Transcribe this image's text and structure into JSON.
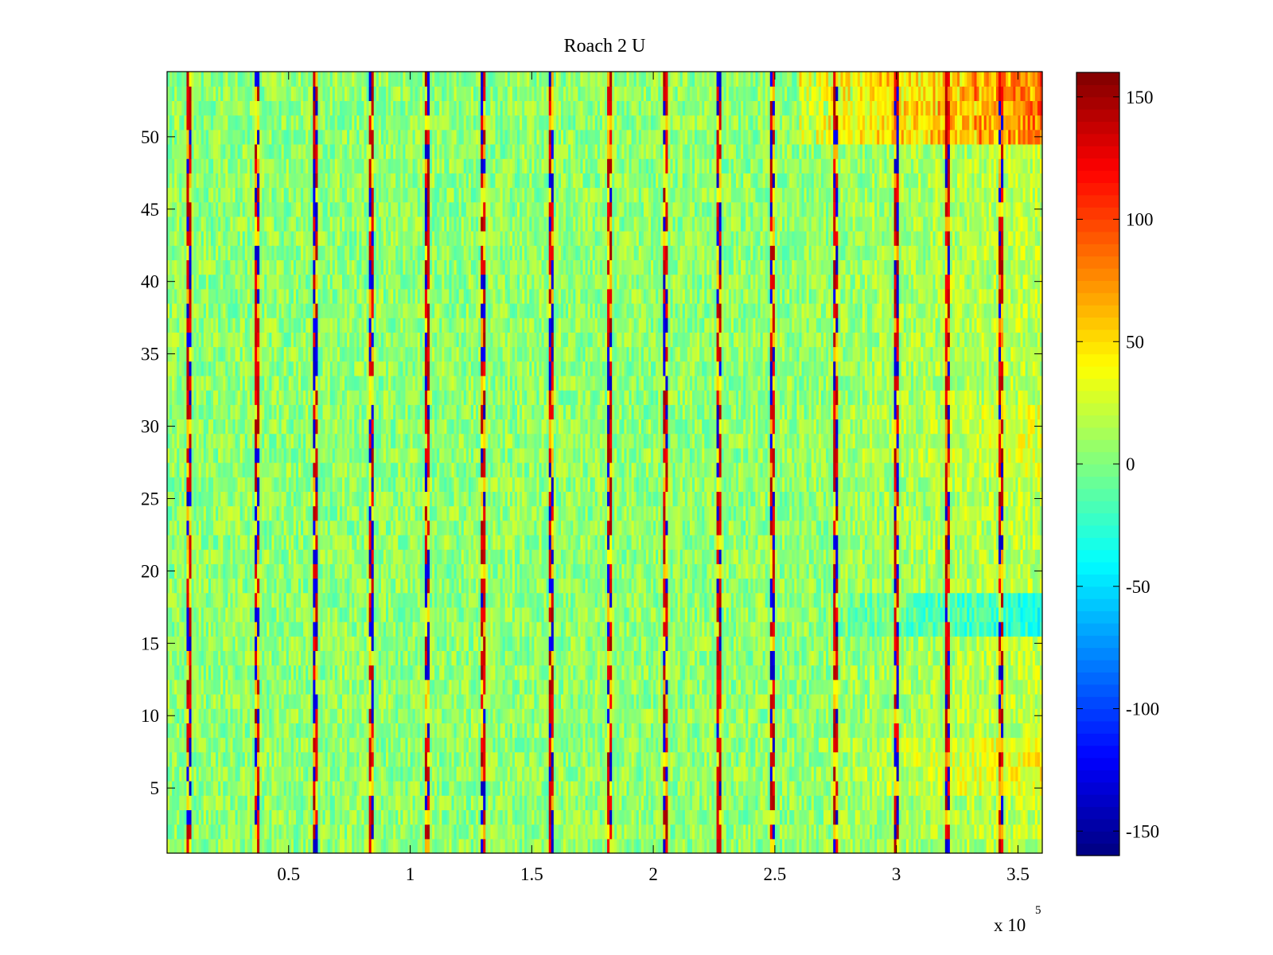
{
  "chart_data": {
    "type": "heatmap",
    "title": "Roach 2 U",
    "xlabel": "",
    "ylabel": "",
    "x_exponent_label": "x 10",
    "x_exponent_power": "5",
    "xlim": [
      0,
      360000
    ],
    "ylim": [
      0.5,
      54.5
    ],
    "x_ticks": [
      50000,
      100000,
      150000,
      200000,
      250000,
      300000,
      350000
    ],
    "x_tick_labels": [
      "0.5",
      "1",
      "1.5",
      "2",
      "2.5",
      "3",
      "3.5"
    ],
    "y_ticks": [
      5,
      10,
      15,
      20,
      25,
      30,
      35,
      40,
      45,
      50
    ],
    "y_tick_labels": [
      "5",
      "10",
      "15",
      "20",
      "25",
      "30",
      "35",
      "40",
      "45",
      "50"
    ],
    "rows": 54,
    "colormap": "jet",
    "clim": [
      -160,
      160
    ],
    "colorbar_ticks": [
      150,
      100,
      50,
      0,
      -50,
      -100,
      -150
    ],
    "colorbar_tick_labels": [
      "150",
      "100",
      "50",
      "0",
      "-50",
      "-100",
      "-150"
    ],
    "colorbar_levels": 64,
    "periodic_spike_columns_x": [
      9000,
      37000,
      61000,
      84000,
      107000,
      130000,
      158000,
      182000,
      205000,
      227000,
      249000,
      275000,
      300000,
      321000,
      343000
    ],
    "grid": false
  }
}
